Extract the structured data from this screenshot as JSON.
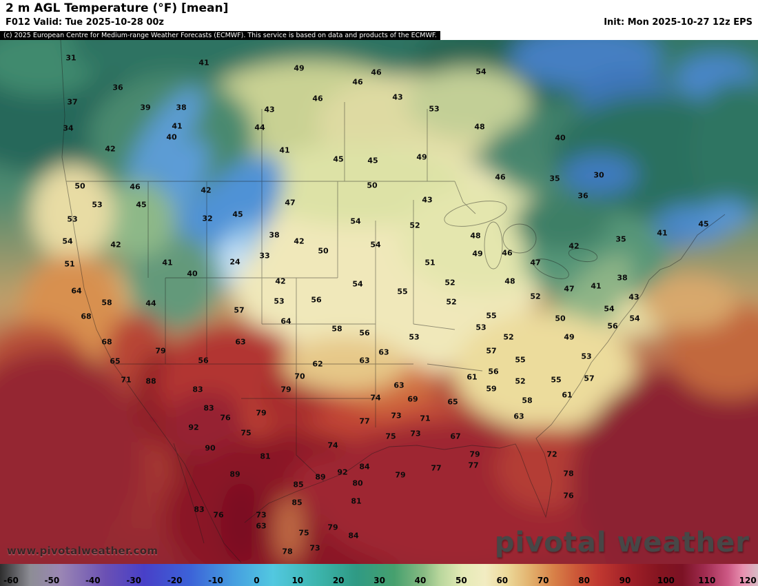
{
  "header": {
    "title": "2 m AGL Temperature (°F) [mean]",
    "valid_label": "F012 Valid: Tue 2025-10-28 00z",
    "init_label": "Init: Mon 2025-10-27 12z EPS"
  },
  "copyright": "(c) 2025 European Centre for Medium-range Weather Forecasts (ECMWF). This service is based on data and products of the ECMWF.",
  "watermarks": {
    "site": "www.pivotalweather.com",
    "brand": "pivotal weather"
  },
  "colorbar": {
    "unit": "°F",
    "ticks": [
      -60,
      -50,
      -40,
      -30,
      -20,
      -10,
      0,
      10,
      20,
      30,
      40,
      50,
      60,
      70,
      80,
      90,
      100,
      110,
      120
    ],
    "stops": [
      [
        0,
        "#2e2e2e"
      ],
      [
        4,
        "#8d8d95"
      ],
      [
        8,
        "#9a86b4"
      ],
      [
        14,
        "#6a50b4"
      ],
      [
        19,
        "#4840c8"
      ],
      [
        25,
        "#3c62d8"
      ],
      [
        31,
        "#46a0e0"
      ],
      [
        36,
        "#52c8e0"
      ],
      [
        42,
        "#3cb4ac"
      ],
      [
        47,
        "#2f9a84"
      ],
      [
        52,
        "#46a06e"
      ],
      [
        56,
        "#8abc84"
      ],
      [
        58,
        "#b8d69c"
      ],
      [
        61,
        "#e4eab6"
      ],
      [
        64,
        "#f2ecc2"
      ],
      [
        67,
        "#ecd898"
      ],
      [
        70,
        "#e2b06c"
      ],
      [
        73,
        "#d88148"
      ],
      [
        76,
        "#cc5838"
      ],
      [
        79,
        "#c03830"
      ],
      [
        83,
        "#a02028"
      ],
      [
        87,
        "#841420"
      ],
      [
        90,
        "#7c1224"
      ],
      [
        93,
        "#a02c50"
      ],
      [
        96,
        "#cc5884"
      ],
      [
        98,
        "#e890b0"
      ],
      [
        100,
        "#d8bac4"
      ]
    ]
  },
  "map": {
    "labels": [
      [
        31,
        103,
        84
      ],
      [
        41,
        296,
        91
      ],
      [
        49,
        434,
        99
      ],
      [
        46,
        546,
        105
      ],
      [
        54,
        698,
        104
      ],
      [
        36,
        171,
        127
      ],
      [
        46,
        519,
        119
      ],
      [
        43,
        577,
        141
      ],
      [
        46,
        461,
        143
      ],
      [
        37,
        105,
        148
      ],
      [
        39,
        211,
        156
      ],
      [
        38,
        263,
        156
      ],
      [
        43,
        391,
        159
      ],
      [
        53,
        630,
        158
      ],
      [
        34,
        99,
        186
      ],
      [
        41,
        257,
        183
      ],
      [
        44,
        377,
        185
      ],
      [
        48,
        696,
        184
      ],
      [
        40,
        249,
        199
      ],
      [
        40,
        813,
        200
      ],
      [
        42,
        160,
        216
      ],
      [
        41,
        413,
        218
      ],
      [
        45,
        491,
        231
      ],
      [
        45,
        541,
        233
      ],
      [
        49,
        612,
        228
      ],
      [
        35,
        805,
        259
      ],
      [
        30,
        869,
        254
      ],
      [
        50,
        116,
        270
      ],
      [
        46,
        196,
        271
      ],
      [
        42,
        299,
        276
      ],
      [
        50,
        540,
        269
      ],
      [
        46,
        726,
        257
      ],
      [
        36,
        846,
        284
      ],
      [
        53,
        141,
        297
      ],
      [
        45,
        205,
        297
      ],
      [
        47,
        421,
        294
      ],
      [
        43,
        620,
        290
      ],
      [
        53,
        105,
        318
      ],
      [
        32,
        301,
        317
      ],
      [
        45,
        345,
        311
      ],
      [
        54,
        516,
        321
      ],
      [
        52,
        602,
        327
      ],
      [
        35,
        901,
        347
      ],
      [
        41,
        961,
        338
      ],
      [
        45,
        1021,
        325
      ],
      [
        54,
        98,
        350
      ],
      [
        42,
        168,
        355
      ],
      [
        38,
        398,
        341
      ],
      [
        42,
        434,
        350
      ],
      [
        48,
        690,
        342
      ],
      [
        50,
        469,
        364
      ],
      [
        54,
        545,
        355
      ],
      [
        46,
        736,
        367
      ],
      [
        42,
        833,
        357
      ],
      [
        51,
        101,
        383
      ],
      [
        41,
        243,
        381
      ],
      [
        24,
        341,
        380
      ],
      [
        33,
        384,
        371
      ],
      [
        51,
        624,
        381
      ],
      [
        49,
        693,
        368
      ],
      [
        47,
        777,
        381
      ],
      [
        40,
        279,
        397
      ],
      [
        42,
        407,
        408
      ],
      [
        52,
        653,
        410
      ],
      [
        48,
        740,
        408
      ],
      [
        38,
        903,
        403
      ],
      [
        41,
        865,
        415
      ],
      [
        47,
        826,
        419
      ],
      [
        43,
        920,
        431
      ],
      [
        64,
        111,
        422
      ],
      [
        58,
        155,
        439
      ],
      [
        44,
        219,
        440
      ],
      [
        53,
        405,
        437
      ],
      [
        54,
        519,
        412
      ],
      [
        55,
        584,
        423
      ],
      [
        56,
        459,
        435
      ],
      [
        52,
        655,
        438
      ],
      [
        52,
        777,
        430
      ],
      [
        54,
        884,
        448
      ],
      [
        57,
        347,
        450
      ],
      [
        55,
        713,
        458
      ],
      [
        50,
        813,
        462
      ],
      [
        54,
        921,
        462
      ],
      [
        68,
        125,
        459
      ],
      [
        64,
        415,
        466
      ],
      [
        58,
        489,
        477
      ],
      [
        56,
        529,
        483
      ],
      [
        53,
        601,
        489
      ],
      [
        53,
        698,
        475
      ],
      [
        52,
        738,
        489
      ],
      [
        49,
        826,
        489
      ],
      [
        56,
        889,
        473
      ],
      [
        68,
        155,
        496
      ],
      [
        63,
        349,
        496
      ],
      [
        57,
        713,
        509
      ],
      [
        55,
        755,
        522
      ],
      [
        53,
        851,
        517
      ],
      [
        65,
        167,
        524
      ],
      [
        79,
        233,
        509
      ],
      [
        56,
        295,
        523
      ],
      [
        62,
        461,
        528
      ],
      [
        63,
        529,
        523
      ],
      [
        63,
        557,
        511
      ],
      [
        61,
        685,
        547
      ],
      [
        56,
        716,
        539
      ],
      [
        59,
        713,
        564
      ],
      [
        52,
        755,
        553
      ],
      [
        55,
        807,
        551
      ],
      [
        57,
        855,
        549
      ],
      [
        71,
        183,
        551
      ],
      [
        88,
        219,
        553
      ],
      [
        83,
        287,
        565
      ],
      [
        70,
        435,
        546
      ],
      [
        79,
        415,
        565
      ],
      [
        74,
        545,
        577
      ],
      [
        63,
        579,
        559
      ],
      [
        69,
        599,
        579
      ],
      [
        61,
        823,
        573
      ],
      [
        58,
        765,
        581
      ],
      [
        83,
        303,
        592
      ],
      [
        76,
        327,
        606
      ],
      [
        79,
        379,
        599
      ],
      [
        73,
        575,
        603
      ],
      [
        71,
        617,
        607
      ],
      [
        65,
        657,
        583
      ],
      [
        63,
        753,
        604
      ],
      [
        92,
        281,
        620
      ],
      [
        75,
        357,
        628
      ],
      [
        77,
        529,
        611
      ],
      [
        73,
        603,
        629
      ],
      [
        75,
        567,
        633
      ],
      [
        67,
        661,
        633
      ],
      [
        90,
        305,
        650
      ],
      [
        81,
        385,
        662
      ],
      [
        74,
        483,
        646
      ],
      [
        79,
        689,
        659
      ],
      [
        72,
        801,
        659
      ],
      [
        89,
        341,
        688
      ],
      [
        89,
        465,
        692
      ],
      [
        92,
        497,
        685
      ],
      [
        84,
        529,
        677
      ],
      [
        77,
        633,
        679
      ],
      [
        77,
        687,
        675
      ],
      [
        79,
        581,
        689
      ],
      [
        78,
        825,
        687
      ],
      [
        85,
        433,
        703
      ],
      [
        80,
        519,
        701
      ],
      [
        76,
        825,
        719
      ],
      [
        83,
        289,
        739
      ],
      [
        76,
        317,
        747
      ],
      [
        73,
        379,
        747
      ],
      [
        85,
        431,
        729
      ],
      [
        81,
        517,
        727
      ],
      [
        63,
        379,
        763
      ],
      [
        75,
        441,
        773
      ],
      [
        79,
        483,
        765
      ],
      [
        84,
        513,
        777
      ],
      [
        73,
        457,
        795
      ],
      [
        78,
        417,
        800
      ]
    ]
  }
}
